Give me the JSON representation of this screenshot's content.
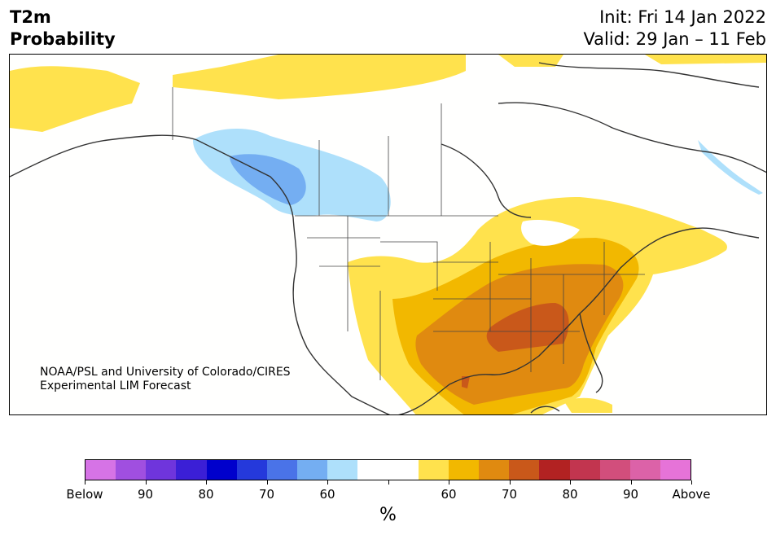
{
  "header": {
    "title_line1": "T2m",
    "title_line2": "Probability",
    "init": "Init: Fri 14 Jan 2022",
    "valid": "Valid: 29 Jan – 11 Feb"
  },
  "map": {
    "credit_line1": "NOAA/PSL and University of Colorado/CIRES",
    "credit_line2": "Experimental LIM Forecast"
  },
  "colorbar": {
    "colors": [
      "#d673e6",
      "#a04fe0",
      "#6f35dc",
      "#3b1fd6",
      "#0000cc",
      "#2539db",
      "#4a73e8",
      "#74aef2",
      "#aee0fb",
      "#ffffff",
      "#ffffff",
      "#ffe24d",
      "#f2b800",
      "#e08a10",
      "#c9581a",
      "#b22222",
      "#c2354f",
      "#d24e7c",
      "#dc62a8",
      "#e673d8"
    ],
    "tick_labels": [
      "Below",
      "90",
      "80",
      "70",
      "60",
      "",
      "60",
      "70",
      "80",
      "90",
      "Above"
    ],
    "unit_label": "%"
  }
}
